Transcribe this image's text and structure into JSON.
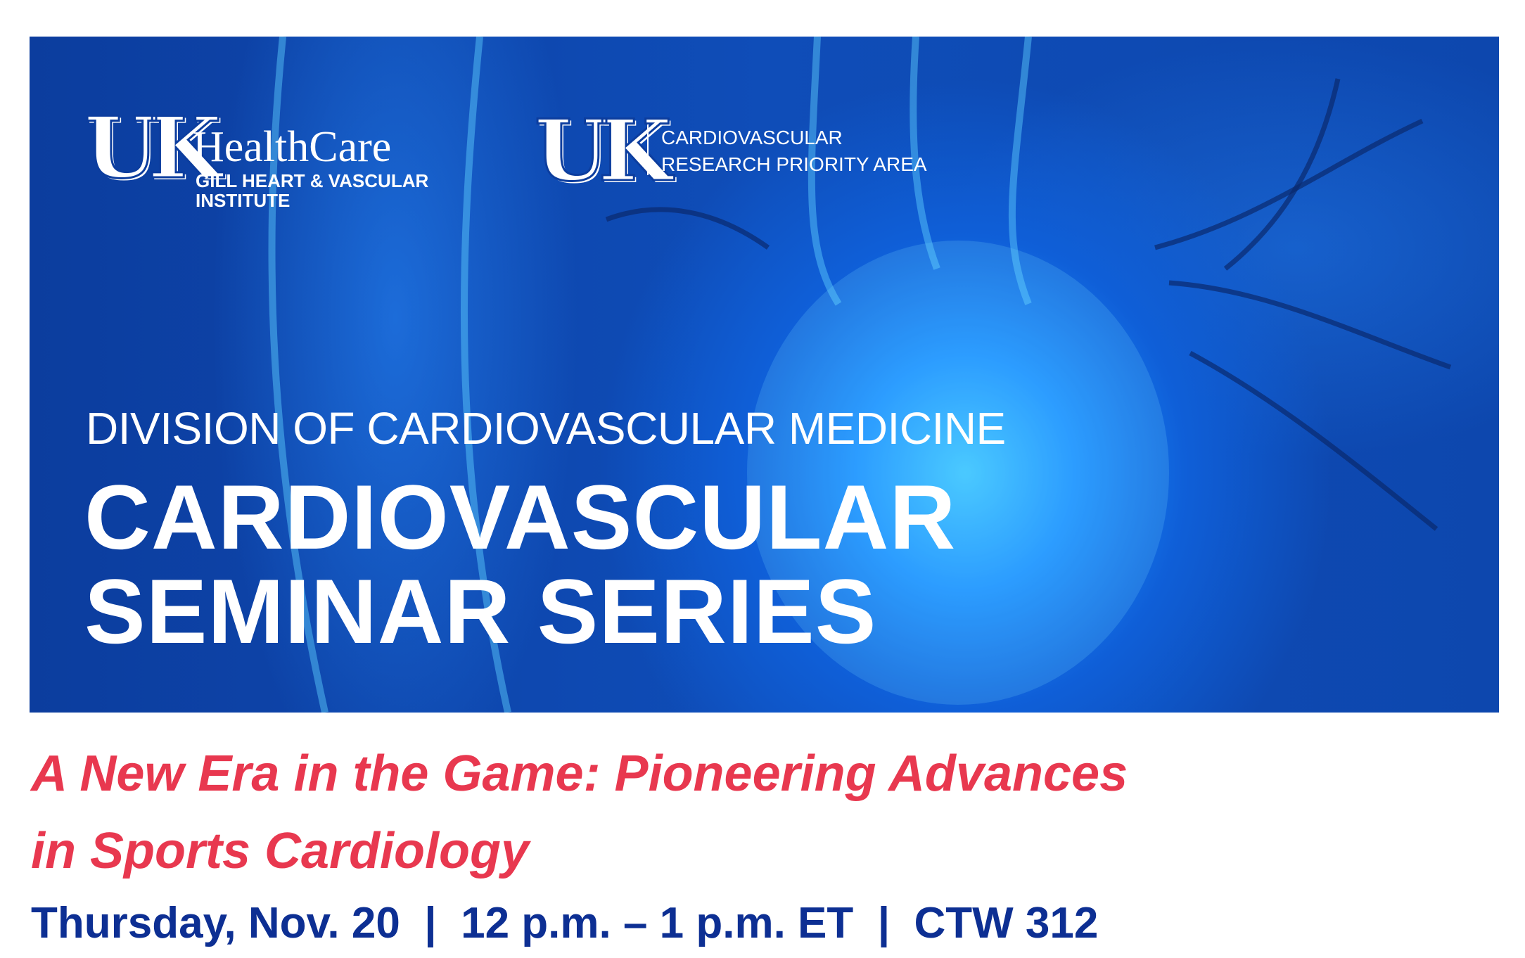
{
  "banner": {
    "logo_left": {
      "mark": "UK",
      "name": "HealthCare",
      "sub1": "GILL HEART & VASCULAR",
      "sub2": "INSTITUTE"
    },
    "logo_right": {
      "mark": "UK",
      "line1": "CARDIOVASCULAR",
      "line2": "RESEARCH PRIORITY AREA"
    },
    "division": "DIVISION OF CARDIOVASCULAR MEDICINE",
    "series_line1": "CARDIOVASCULAR",
    "series_line2": "SEMINAR SERIES"
  },
  "event": {
    "title_line1": "A New Era in the Game: Pioneering Advances",
    "title_line2": "in Sports Cardiology",
    "details": "Thursday, Nov. 20  |  12 p.m. – 1 p.m. ET  |  CTW 312"
  },
  "colors": {
    "banner_blue": "#0f4db8",
    "title_red": "#e8384f",
    "details_blue": "#0d2f93"
  }
}
